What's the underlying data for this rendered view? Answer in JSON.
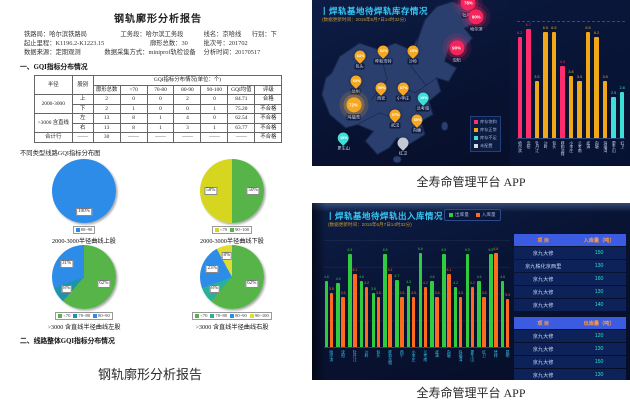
{
  "captions": {
    "report": "钢轨廓形分析报告",
    "app_top": "全寿命管理平台 APP",
    "app_bottom": "全寿命管理平台 APP"
  },
  "report": {
    "title": "钢轨廓形分析报告",
    "meta_rows": [
      [
        "铁路局：哈尔滨铁路局",
        "工务段：哈尔滨工务段",
        "线名：京哈线",
        "行别：下"
      ],
      [
        "起止里程：K1196.2-K1223.15",
        "廓形总数：30",
        "批次号：201702"
      ],
      [
        "数据来源：定期观测",
        "数据采集方式：miniprof轨检设备",
        "分析时间：20170517"
      ]
    ],
    "section1_title": "一、GQI指标分布情况",
    "gqi_table": {
      "corner1": "半径",
      "corner2": "股别",
      "group_header": "GQI指标分布情况(单位：个)",
      "columns": [
        "廓形总数",
        "<70",
        "70-80",
        "80-90",
        "90-100",
        "GQI均值",
        "评级"
      ],
      "rows": [
        {
          "radius": "2000-3000",
          "rowspan": 2,
          "side": "上",
          "cells": [
            "2",
            "0",
            "0",
            "2",
            "0",
            "84.71",
            "合格"
          ]
        },
        {
          "side": "下",
          "cells": [
            "2",
            "1",
            "0",
            "0",
            "1",
            "75.20",
            "不合格"
          ]
        },
        {
          "radius": ">3000 含直线",
          "rowspan": 2,
          "side": "左",
          "cells": [
            "13",
            "8",
            "1",
            "4",
            "0",
            "62.54",
            "不合格"
          ]
        },
        {
          "side": "右",
          "cells": [
            "13",
            "8",
            "1",
            "3",
            "1",
            "63.77",
            "不合格"
          ]
        },
        {
          "radius": "合计行",
          "rowspan": 1,
          "side": "——",
          "cells": [
            "30",
            "——",
            "——",
            "——",
            "——",
            "——",
            "不合格"
          ]
        }
      ]
    },
    "pies_intro": "不同类型线路GQI指标分布图",
    "pies": [
      {
        "caption": "2000-3000半径曲线上股",
        "slices": [
          {
            "label": "80~90",
            "pct": 100,
            "text": "100%",
            "color": "#2d8ce8"
          }
        ],
        "legend": [
          {
            "label": "80~90",
            "color": "#2d8ce8"
          }
        ]
      },
      {
        "caption": "2000-3000半径曲线下股",
        "slices": [
          {
            "label": "90~100",
            "pct": 50,
            "text": "50%",
            "color": "#57b449"
          },
          {
            "label": "<70",
            "pct": 50,
            "text": "50%",
            "color": "#d6d620"
          }
        ],
        "legend": [
          {
            "label": "<70",
            "color": "#d6d620"
          },
          {
            "label": "90~100",
            "color": "#57b449"
          }
        ]
      },
      {
        "caption": ">3000 含直线半径曲线左股",
        "slices": [
          {
            "label": "<70",
            "pct": 62,
            "text": "62%",
            "color": "#57b449"
          },
          {
            "label": "70~80",
            "pct": 8,
            "text": "8%",
            "color": "#1d94ab"
          },
          {
            "label": "80~90",
            "pct": 31,
            "text": "31%",
            "color": "#2d8ce8"
          }
        ],
        "legend": [
          {
            "label": "<70",
            "color": "#57b449"
          },
          {
            "label": "70~80",
            "color": "#1d94ab"
          },
          {
            "label": "80~90",
            "color": "#2d8ce8"
          }
        ]
      },
      {
        "caption": ">3000 含直线半径曲线右股",
        "slices": [
          {
            "label": "<70",
            "pct": 62,
            "text": "62%",
            "color": "#57b449"
          },
          {
            "label": "70~80",
            "pct": 8,
            "text": "8%",
            "color": "#28b09a"
          },
          {
            "label": "80~90",
            "pct": 23,
            "text": "23%",
            "color": "#2d8ce8"
          },
          {
            "label": "90~100",
            "pct": 8,
            "text": "8%",
            "color": "#e0dc30"
          }
        ],
        "legend": [
          {
            "label": "<70",
            "color": "#57b449"
          },
          {
            "label": "70~80",
            "color": "#28b09a"
          },
          {
            "label": "80~90",
            "color": "#2d8ce8"
          },
          {
            "label": "90~100",
            "color": "#e0dc30"
          }
        ]
      }
    ],
    "section2_title": "二、线路整体GQI指标分布情况"
  },
  "inventory": {
    "title": "丨焊轨基地待焊轨库存情况",
    "subtitle": "(数据更新时间：2015年6月7日14时32分)",
    "legend": [
      {
        "label": "库存饱和",
        "color": "#ff2d6e"
      },
      {
        "label": "库存正常",
        "color": "#f0a818"
      },
      {
        "label": "库存不足",
        "color": "#3ce0d8"
      },
      {
        "label": "未配置",
        "color": "#d8dce0"
      }
    ],
    "markers": [
      {
        "name": "牡丹江",
        "value": "78%",
        "shape": "circle",
        "tone": "red",
        "x": 79,
        "y": 5
      },
      {
        "name": "哈尔滨",
        "value": "90%",
        "shape": "circle",
        "tone": "red",
        "x": 83,
        "y": 13
      },
      {
        "name": "沈阳",
        "value": "90%",
        "shape": "circle",
        "tone": "red",
        "x": 73,
        "y": 32
      },
      {
        "name": "沙岭",
        "value": "15%",
        "shape": "pin",
        "tone": "amber",
        "x": 51,
        "y": 34
      },
      {
        "name": "呼和浩特",
        "value": "62%",
        "shape": "pin",
        "tone": "amber",
        "x": 36,
        "y": 34
      },
      {
        "name": "包头",
        "value": "63%",
        "shape": "pin",
        "tone": "amber",
        "x": 24,
        "y": 37
      },
      {
        "name": "兰州",
        "value": "63%",
        "shape": "pin",
        "tone": "amber",
        "x": 22,
        "y": 52
      },
      {
        "name": "西安",
        "value": "50%",
        "shape": "pin",
        "tone": "amber",
        "x": 35,
        "y": 56
      },
      {
        "name": "小李庄",
        "value": "67%",
        "shape": "pin",
        "tone": "amber",
        "x": 46,
        "y": 56
      },
      {
        "name": "兰考南",
        "value": "19%",
        "shape": "pin",
        "tone": "cyan",
        "x": 56,
        "y": 62
      },
      {
        "name": "玛瑙湾",
        "value": "72%",
        "shape": "circle",
        "tone": "amber",
        "x": 21,
        "y": 66
      },
      {
        "name": "武汉",
        "value": "57%",
        "shape": "pin",
        "tone": "amber",
        "x": 42,
        "y": 72
      },
      {
        "name": "向塘",
        "value": "60%",
        "shape": "pin",
        "tone": "amber",
        "x": 53,
        "y": 75
      },
      {
        "name": "更生山",
        "value": "19%",
        "shape": "pin",
        "tone": "cyan",
        "x": 16,
        "y": 86
      },
      {
        "name": "红卫",
        "value": "",
        "shape": "pin",
        "tone": "gray",
        "x": 46,
        "y": 89
      }
    ],
    "bars": [
      {
        "name": "哈尔滨",
        "value": 6.2,
        "color": "#ff2d6e"
      },
      {
        "name": "沈阳",
        "value": 6.7,
        "color": "#ff2d6e"
      },
      {
        "name": "牡丹江",
        "value": 3.5,
        "color": "#f0a818"
      },
      {
        "name": "沙岭",
        "value": 6.5,
        "color": "#f0a818"
      },
      {
        "name": "包头",
        "value": 6.5,
        "color": "#f0a818"
      },
      {
        "name": "呼和浩特",
        "value": 4.4,
        "color": "#ff2d6e"
      },
      {
        "name": "小李庄",
        "value": 3.8,
        "color": "#f0a818"
      },
      {
        "name": "兰考南",
        "value": 3.5,
        "color": "#f0a818"
      },
      {
        "name": "武清",
        "value": 6.5,
        "color": "#f0a818"
      },
      {
        "name": "向塘",
        "value": 6.2,
        "color": "#f0a818"
      },
      {
        "name": "玛瑙湾",
        "value": 3.5,
        "color": "#f0a818"
      },
      {
        "name": "更生山",
        "value": 2.5,
        "color": "#3ce0d8"
      },
      {
        "name": "红卫",
        "value": 2.8,
        "color": "#3ce0d8"
      }
    ]
  },
  "inout": {
    "title": "丨焊轨基地待焊轨出入库情况",
    "subtitle": "(数据更新时间：2015年6月7日14时32分)",
    "legend": [
      {
        "label": "出库量",
        "color": "#2ecc3e"
      },
      {
        "label": "入库量",
        "color": "#ff6a1e"
      }
    ],
    "groups": [
      {
        "name": "哈尔滨",
        "out": 4.6,
        "in": 3.8
      },
      {
        "name": "沈阳",
        "out": 4.5,
        "in": 3.5
      },
      {
        "name": "牡丹江",
        "out": 6.5,
        "in": 5.1
      },
      {
        "name": "沙岭",
        "out": 4.6,
        "in": 4.2
      },
      {
        "name": "包头",
        "out": 3.8,
        "in": 3.5
      },
      {
        "name": "呼和浩特",
        "out": 6.5,
        "in": 5.1
      },
      {
        "name": "西宁",
        "out": 4.7,
        "in": 3.5
      },
      {
        "name": "小李庄",
        "out": 4.3,
        "in": 3.5
      },
      {
        "name": "兰考南",
        "out": 6.6,
        "in": 4.2
      },
      {
        "name": "武清",
        "out": 4.6,
        "in": 3.5
      },
      {
        "name": "向塘",
        "out": 6.5,
        "in": 5.1
      },
      {
        "name": "玛瑙湾",
        "out": 4.2,
        "in": 3.5
      },
      {
        "name": "更生山",
        "out": 6.5,
        "in": 4.2
      },
      {
        "name": "红卫",
        "out": 4.6,
        "in": 3.5
      },
      {
        "name": "凭祥",
        "out": 6.5,
        "in": 6.6
      },
      {
        "name": "昆明",
        "out": 4.6,
        "in": 3.4
      }
    ],
    "in_table": {
      "headers": [
        "项  目",
        "入库量（吨）"
      ],
      "rows": [
        [
          "京九大修",
          "150"
        ],
        [
          "京九株化京西里",
          "130"
        ],
        [
          "京九大修",
          "160"
        ],
        [
          "京九大修",
          "130"
        ],
        [
          "京九大修",
          "140"
        ]
      ]
    },
    "out_table": {
      "headers": [
        "项  目",
        "出库量（吨）"
      ],
      "rows": [
        [
          "京九大修",
          "120"
        ],
        [
          "京九大修",
          "130"
        ],
        [
          "京九大修",
          "150"
        ],
        [
          "京九大修",
          "130"
        ],
        [
          "京九大修",
          "150"
        ]
      ]
    }
  },
  "palette": {
    "dash_bg": "#081230",
    "title_cyan": "#38c8f5",
    "subtitle_gold": "#c79a2e",
    "map_land": "#2b3f6f",
    "pink": "#ff2d6e",
    "amber": "#f0a818",
    "cyan": "#3ce0d8",
    "green": "#2ecc3e",
    "orange": "#ff6a1e",
    "table_header": "#3b5be0",
    "table_header_text": "#ff9a3d"
  },
  "chart_data": [
    {
      "type": "pie",
      "title": "2000-3000半径曲线上股",
      "labels": [
        "80~90"
      ],
      "values": [
        100
      ]
    },
    {
      "type": "pie",
      "title": "2000-3000半径曲线下股",
      "labels": [
        "<70",
        "90~100"
      ],
      "values": [
        50,
        50
      ]
    },
    {
      "type": "pie",
      "title": ">3000 含直线半径曲线左股",
      "labels": [
        "<70",
        "70~80",
        "80~90"
      ],
      "values": [
        62,
        8,
        31
      ]
    },
    {
      "type": "pie",
      "title": ">3000 含直线半径曲线右股",
      "labels": [
        "<70",
        "70~80",
        "80~90",
        "90~100"
      ],
      "values": [
        62,
        8,
        23,
        8
      ]
    },
    {
      "type": "bar",
      "title": "焊轨基地待焊轨库存情况",
      "ylim": [
        0,
        8
      ],
      "categories": [
        "哈尔滨",
        "沈阳",
        "牡丹江",
        "沙岭",
        "包头",
        "呼和浩特",
        "小李庄",
        "兰考南",
        "武清",
        "向塘",
        "玛瑙湾",
        "更生山",
        "红卫"
      ],
      "values": [
        6.2,
        6.7,
        3.5,
        6.5,
        6.5,
        4.4,
        3.8,
        3.5,
        6.5,
        6.2,
        3.5,
        2.5,
        2.8
      ],
      "legend": [
        "库存饱和",
        "库存正常",
        "库存不足",
        "未配置"
      ]
    },
    {
      "type": "bar",
      "title": "焊轨基地待焊轨出入库情况",
      "ylim": [
        0,
        8
      ],
      "categories": [
        "哈尔滨",
        "沈阳",
        "牡丹江",
        "沙岭",
        "包头",
        "呼和浩特",
        "西宁",
        "小李庄",
        "兰考南",
        "武清",
        "向塘",
        "玛瑙湾",
        "更生山",
        "红卫",
        "凭祥",
        "昆明"
      ],
      "series": [
        {
          "name": "出库量",
          "values": [
            4.6,
            4.5,
            6.5,
            4.6,
            3.8,
            6.5,
            4.7,
            4.3,
            6.6,
            4.6,
            6.5,
            4.2,
            6.5,
            4.6,
            6.5,
            4.6
          ]
        },
        {
          "name": "入库量",
          "values": [
            3.8,
            3.5,
            5.1,
            4.2,
            3.5,
            5.1,
            3.5,
            3.5,
            4.2,
            3.5,
            5.1,
            3.5,
            4.2,
            3.5,
            6.6,
            3.4
          ]
        }
      ]
    },
    {
      "type": "table",
      "title": "入库量（吨）",
      "rows": [
        [
          "京九大修",
          150
        ],
        [
          "京九株化京西里",
          130
        ],
        [
          "京九大修",
          160
        ],
        [
          "京九大修",
          130
        ],
        [
          "京九大修",
          140
        ]
      ]
    },
    {
      "type": "table",
      "title": "出库量（吨）",
      "rows": [
        [
          "京九大修",
          120
        ],
        [
          "京九大修",
          130
        ],
        [
          "京九大修",
          150
        ],
        [
          "京九大修",
          130
        ],
        [
          "京九大修",
          150
        ]
      ]
    }
  ]
}
